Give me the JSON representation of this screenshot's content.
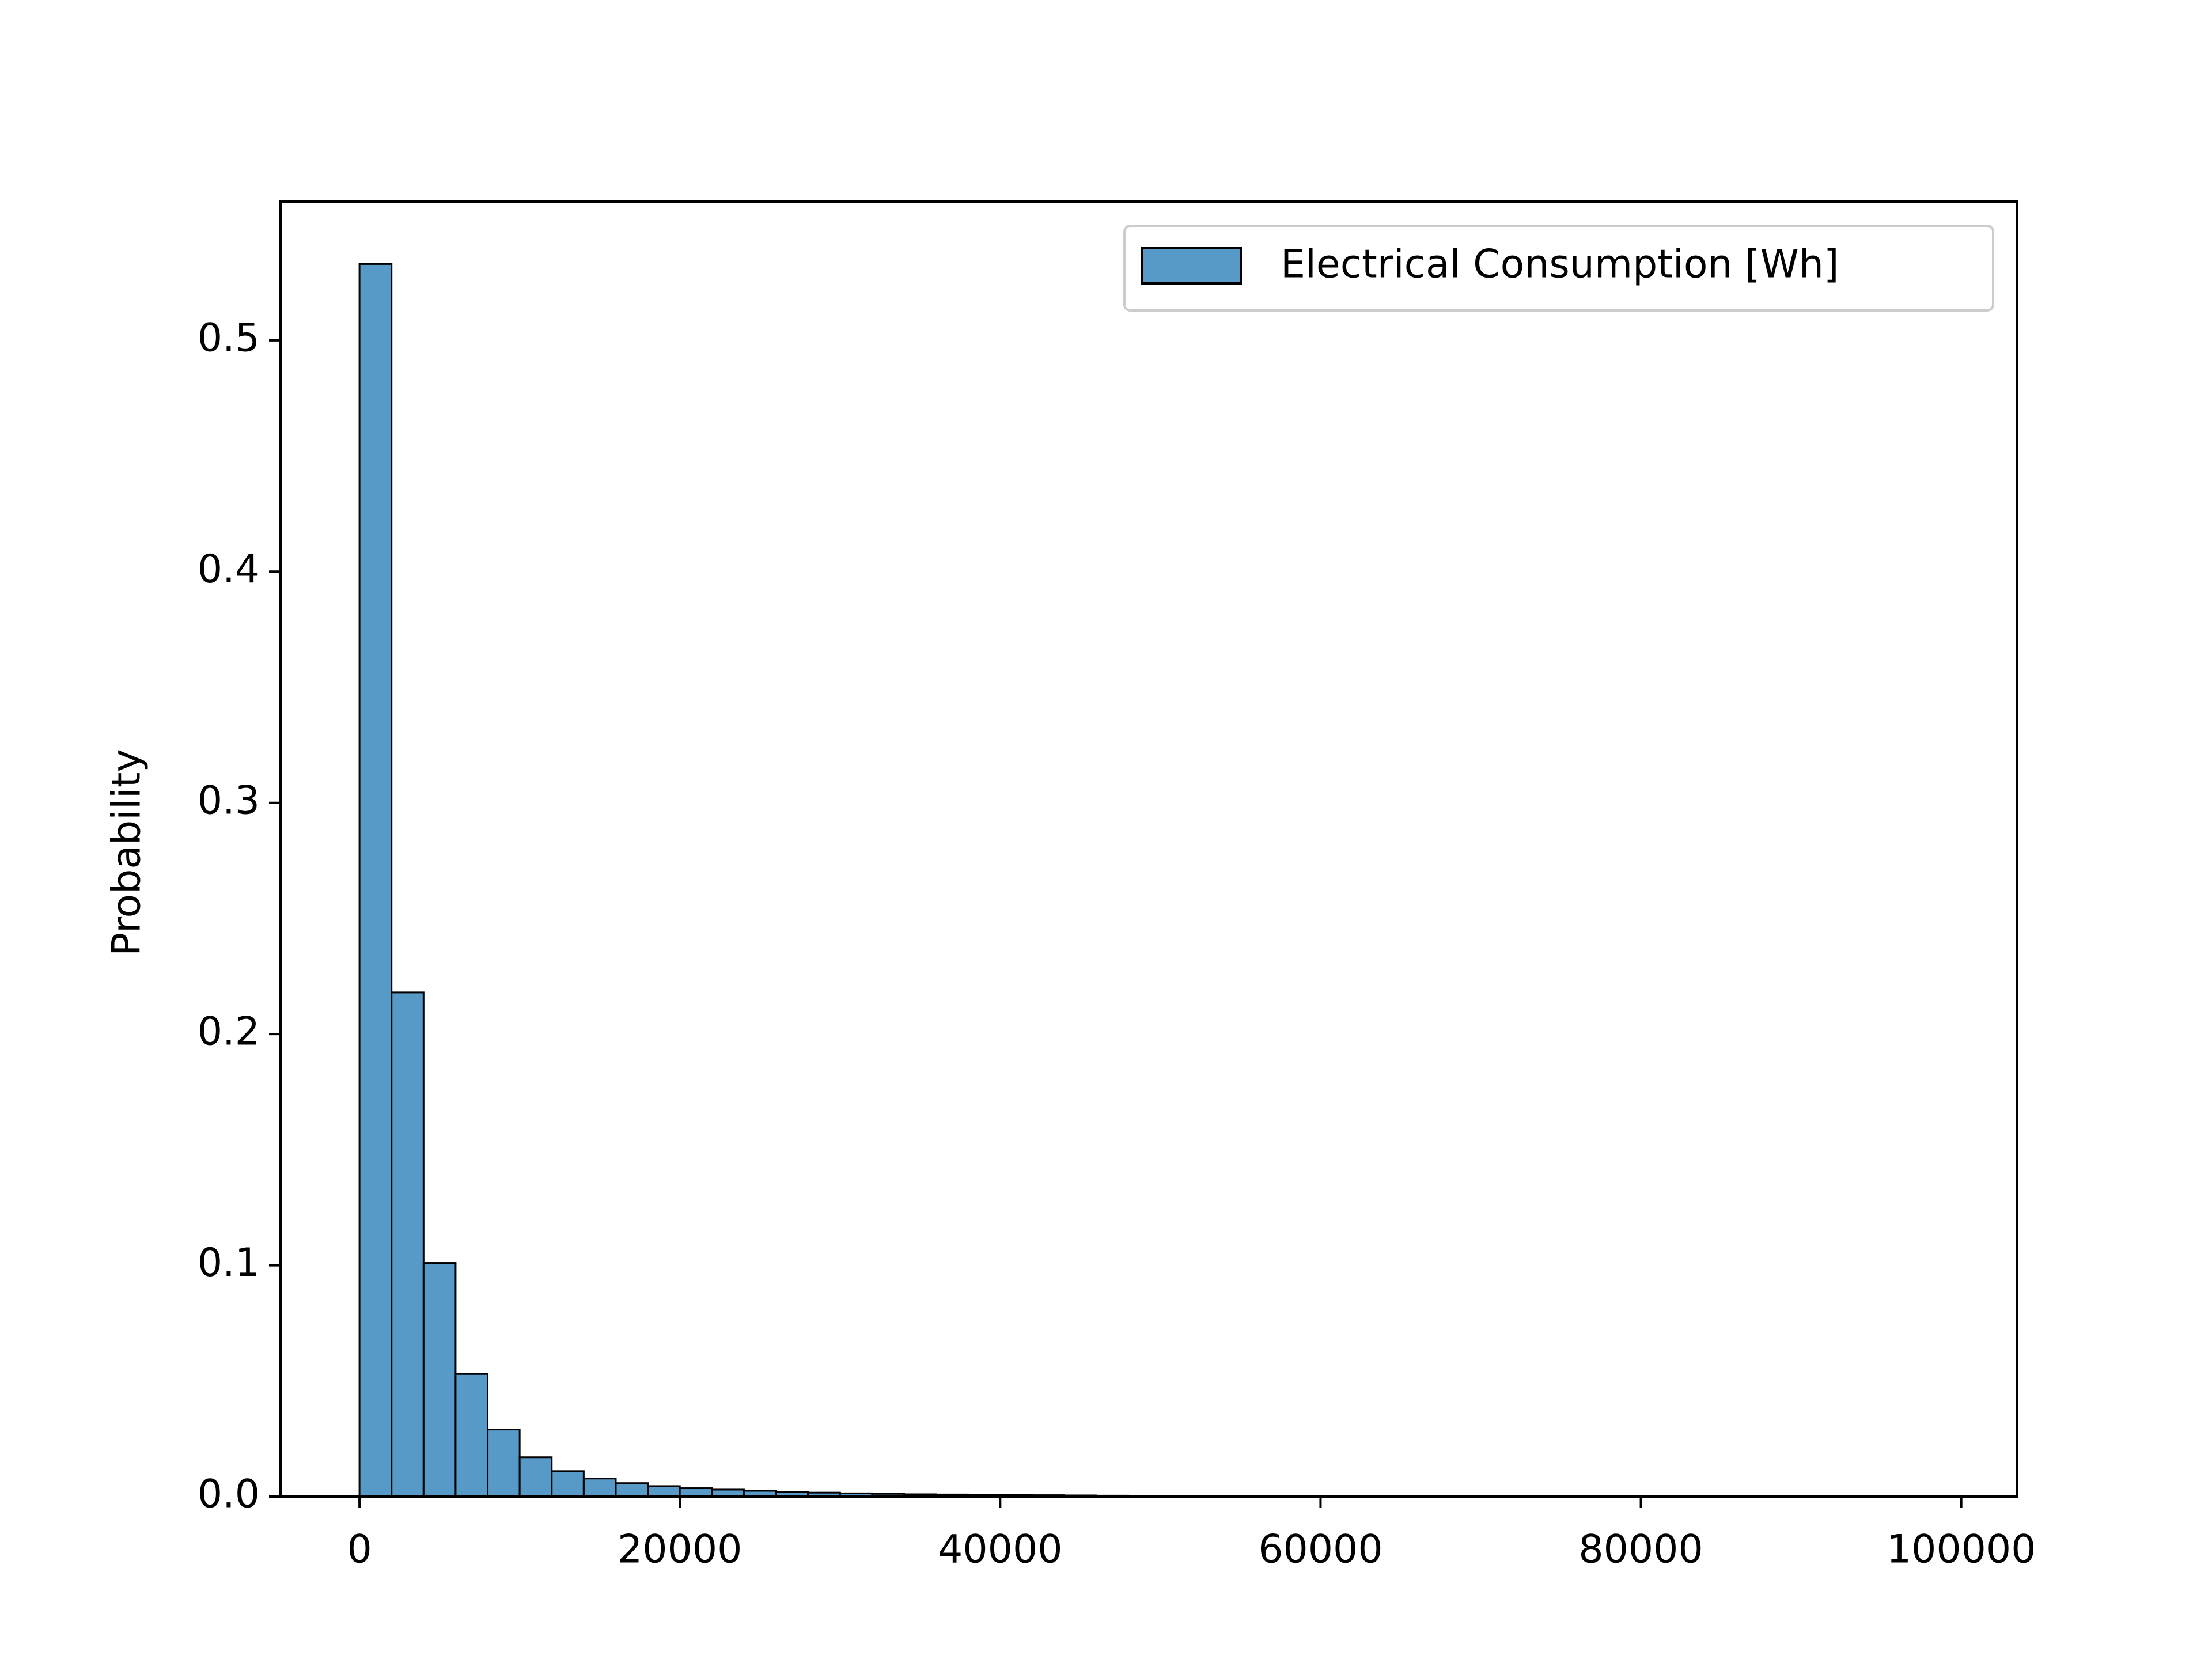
{
  "chart_data": {
    "type": "histogram",
    "ylabel": "Probability",
    "bins": [
      0,
      2000,
      4000,
      6000,
      8000,
      10000,
      12000,
      14000,
      16000,
      18000,
      20000,
      22000,
      24000,
      26000,
      28000,
      30000,
      32000,
      34000,
      36000,
      38000,
      40000,
      42000,
      44000,
      46000,
      48000,
      50000,
      52000,
      54000,
      56000,
      58000,
      60000,
      62000,
      64000,
      66000,
      68000,
      70000,
      72000,
      74000,
      76000,
      78000,
      80000,
      82000,
      84000,
      86000,
      88000,
      90000,
      92000,
      94000,
      96000,
      98000,
      100000
    ],
    "series": [
      {
        "name": "Electrical Consumption [Wh]",
        "color": "#5799c7",
        "edgecolor": "#000000",
        "values": [
          0.533,
          0.218,
          0.101,
          0.053,
          0.029,
          0.017,
          0.011,
          0.0078,
          0.0058,
          0.0045,
          0.0036,
          0.003,
          0.0025,
          0.002,
          0.0017,
          0.0014,
          0.0012,
          0.001,
          0.0009,
          0.0008,
          0.0007,
          0.0006,
          0.0005,
          0.0004,
          0.0003,
          0.00025,
          0.0002,
          0.00015,
          0.0001,
          0.0001,
          8e-05,
          6e-05,
          5e-05,
          4e-05,
          3e-05,
          3e-05,
          2e-05,
          2e-05,
          1e-05,
          1e-05,
          1e-05,
          1e-05,
          1e-05,
          5e-06,
          5e-06,
          5e-06,
          5e-06,
          3e-06,
          3e-06,
          3e-06
        ]
      }
    ],
    "xlim": [
      -4930,
      103500
    ],
    "ylim": [
      0,
      0.56
    ],
    "xticks": [
      0,
      20000,
      40000,
      60000,
      80000,
      100000
    ],
    "yticks": [
      {
        "value": 0,
        "label": "0.0"
      },
      0.1,
      0.2,
      0.3,
      0.4,
      0.5
    ],
    "grid": false,
    "legend": "upper right"
  }
}
